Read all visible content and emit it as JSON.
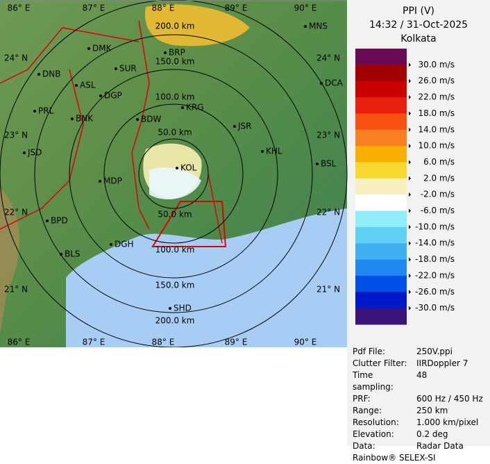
{
  "header": {
    "title": "PPI (V)",
    "time": "14:32 / 31-Oct-2025",
    "station": "Kolkata"
  },
  "legend": {
    "colors": [
      "#6a0a55",
      "#a00000",
      "#c80000",
      "#e82010",
      "#f85010",
      "#f88020",
      "#f8b000",
      "#f8d830",
      "#f8f0c0",
      "#ffffff",
      "#90ecf8",
      "#60d0f4",
      "#40b0f0",
      "#2088f0",
      "#0050e8",
      "#0018c8",
      "#3a1478"
    ],
    "labels": [
      "30.0 m/s",
      "26.0 m/s",
      "22.0 m/s",
      "18.0 m/s",
      "14.0 m/s",
      "10.0 m/s",
      "6.0 m/s",
      "2.0 m/s",
      "-2.0 m/s",
      "-6.0 m/s",
      "-10.0 m/s",
      "-14.0 m/s",
      "-18.0 m/s",
      "-22.0 m/s",
      "-26.0 m/s",
      "-30.0 m/s"
    ]
  },
  "map": {
    "longitudes": [
      "86° E",
      "87° E",
      "88° E",
      "89° E",
      "90° E"
    ],
    "latitudes": [
      "24° N",
      "23° N",
      "22° N",
      "21° N"
    ],
    "rings": [
      "50.0 km",
      "100.0 km",
      "150.0 km",
      "200.0 km"
    ],
    "places": [
      "MNS",
      "DMK",
      "BRP",
      "SUR",
      "DNB",
      "ASL",
      "DGP",
      "KRG",
      "DCA",
      "PRL",
      "BNK",
      "BDW",
      "JSR",
      "KHL",
      "JSD",
      "MDP",
      "BSL",
      "BPD",
      "BLS",
      "DGH",
      "SHD",
      "KOL"
    ]
  },
  "info": {
    "rows": [
      [
        "Pdf File:",
        "250V.ppi"
      ],
      [
        "Clutter Filter:",
        "IIRDoppler 7"
      ],
      [
        "Time sampling:",
        "48"
      ],
      [
        "PRF:",
        "600 Hz / 450 Hz"
      ],
      [
        "Range:",
        "250 km"
      ],
      [
        "Resolution:",
        "1.000 km/pixel"
      ],
      [
        "Elevation:",
        "0.2 deg"
      ],
      [
        "Data:",
        "Radar Data"
      ]
    ],
    "footer": "Rainbow® SELEX-SI"
  }
}
